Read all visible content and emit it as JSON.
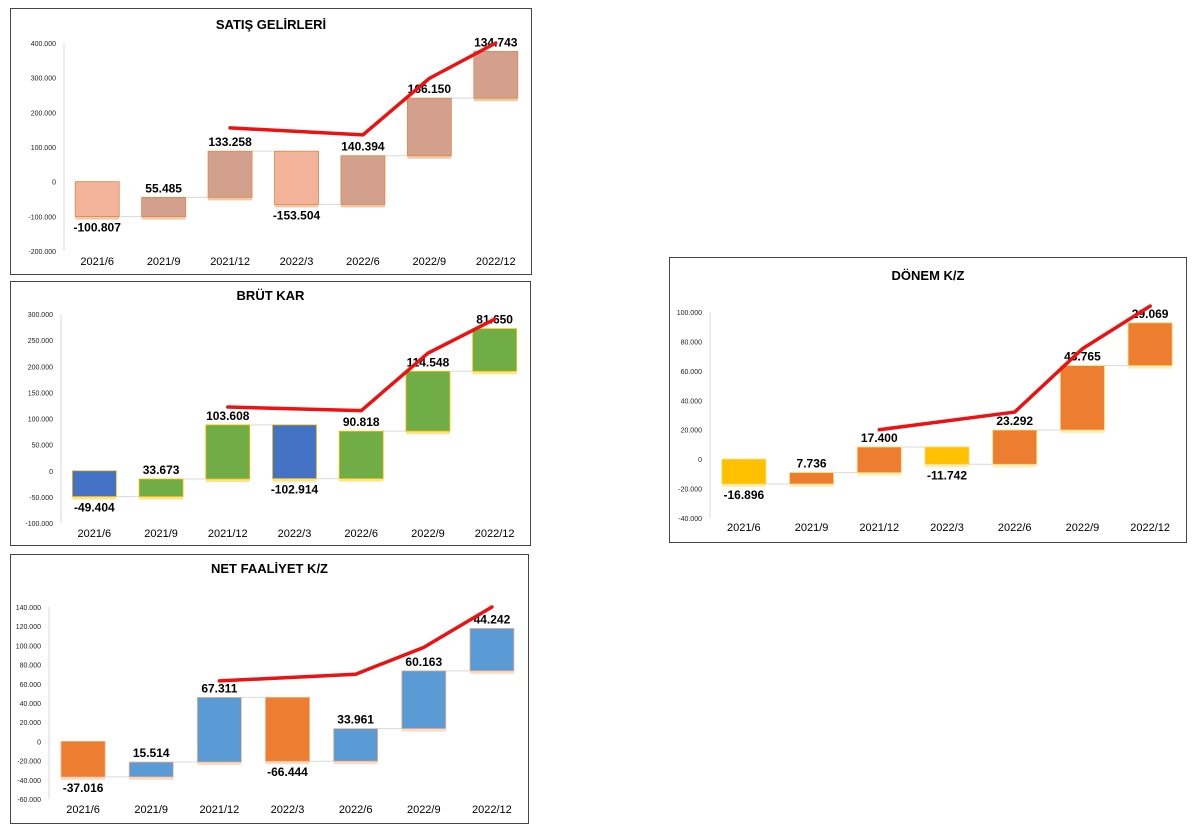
{
  "chart_data": [
    {
      "id": "satis",
      "type": "bar",
      "title": "SATIŞ GELİRLERİ",
      "categories": [
        "2021/6",
        "2021/9",
        "2021/12",
        "2022/3",
        "2022/6",
        "2022/9",
        "2022/12"
      ],
      "series": [
        {
          "values": [
            -100.807,
            55.485,
            133.258,
            -153.504,
            140.394,
            166.15,
            134.743
          ]
        }
      ],
      "value_labels": [
        "-100.807",
        "55.485",
        "133.258",
        "-153.504",
        "140.394",
        "166.150",
        "134.743"
      ],
      "y_ticks": [
        "400.000",
        "300.000",
        "200.000",
        "100.000",
        "0",
        "-100.000",
        "-200.000"
      ],
      "ylim": [
        -200000,
        400000
      ],
      "bars": [
        [
          0,
          -100807
        ],
        [
          -100807,
          -45322
        ],
        [
          -45322,
          87936
        ],
        [
          87936,
          -65568
        ],
        [
          -65568,
          74826
        ],
        [
          74826,
          240976
        ],
        [
          240976,
          375719
        ]
      ],
      "trend": [
        [
          2,
          155000
        ],
        [
          4,
          135000
        ],
        [
          5,
          298000
        ],
        [
          6,
          400000
        ]
      ],
      "colors": {
        "positive": "#d4a08e",
        "negative": "#f2b39a",
        "edge": "#e08840",
        "trend": "#ee1111"
      },
      "bar_colors": [
        "negative",
        "positive",
        "positive",
        "negative",
        "positive",
        "positive",
        "positive"
      ]
    },
    {
      "id": "brut",
      "type": "bar",
      "title": "BRÜT KAR",
      "categories": [
        "2021/6",
        "2021/9",
        "2021/12",
        "2022/3",
        "2022/6",
        "2022/9",
        "2022/12"
      ],
      "series": [
        {
          "values": [
            -49.404,
            33.673,
            103.608,
            -102.914,
            90.818,
            114.548,
            81.65
          ]
        }
      ],
      "value_labels": [
        "-49.404",
        "33.673",
        "103.608",
        "-102.914",
        "90.818",
        "114.548",
        "81.650"
      ],
      "y_ticks": [
        "300.000",
        "250.000",
        "200.000",
        "150.000",
        "100.000",
        "50.000",
        "0",
        "-50.000",
        "-100.000"
      ],
      "ylim": [
        -100000,
        300000
      ],
      "bars": [
        [
          0,
          -49404
        ],
        [
          -49404,
          -15731
        ],
        [
          -15731,
          87877
        ],
        [
          87877,
          -15037
        ],
        [
          -15037,
          75781
        ],
        [
          75781,
          190329
        ],
        [
          190329,
          271979
        ]
      ],
      "trend": [
        [
          2,
          122000
        ],
        [
          4,
          115000
        ],
        [
          5,
          225000
        ],
        [
          6,
          290000
        ]
      ],
      "colors": {
        "positive": "#70ad47",
        "negative": "#4472c4",
        "edge": "#ffc000",
        "trend": "#ee1111"
      },
      "bar_colors": [
        "negative",
        "positive",
        "positive",
        "negative",
        "positive",
        "positive",
        "positive"
      ]
    },
    {
      "id": "net",
      "type": "bar",
      "title": "NET FAALİYET K/Z",
      "categories": [
        "2021/6",
        "2021/9",
        "2021/12",
        "2022/3",
        "2022/6",
        "2022/9",
        "2022/12"
      ],
      "series": [
        {
          "values": [
            -37.016,
            15.514,
            67.311,
            -66.444,
            33.961,
            60.163,
            44.242
          ]
        }
      ],
      "value_labels": [
        "-37.016",
        "15.514",
        "67.311",
        "-66.444",
        "33.961",
        "60.163",
        "44.242"
      ],
      "y_ticks": [
        "140.000",
        "120.000",
        "100.000",
        "80.000",
        "60.000",
        "40.000",
        "20.000",
        "0",
        "-20.000",
        "-40.000",
        "-60.000"
      ],
      "ylim": [
        -60000,
        140000
      ],
      "bars": [
        [
          0,
          -37016
        ],
        [
          -37016,
          -21502
        ],
        [
          -21502,
          45809
        ],
        [
          45809,
          -20635
        ],
        [
          -20635,
          13326
        ],
        [
          13326,
          73489
        ],
        [
          73489,
          117731
        ]
      ],
      "trend": [
        [
          2,
          63000
        ],
        [
          4,
          70000
        ],
        [
          5,
          98000
        ],
        [
          6,
          140000
        ]
      ],
      "colors": {
        "positive": "#5b9bd5",
        "negative": "#ed7d31",
        "edge": "#f4b183",
        "trend": "#ee1111"
      },
      "bar_colors": [
        "negative",
        "positive",
        "positive",
        "negative",
        "positive",
        "positive",
        "positive"
      ]
    },
    {
      "id": "donem",
      "type": "bar",
      "title": "DÖNEM K/Z",
      "categories": [
        "2021/6",
        "2021/9",
        "2021/12",
        "2022/3",
        "2022/6",
        "2022/9",
        "2022/12"
      ],
      "series": [
        {
          "values": [
            -16.896,
            7.736,
            17.4,
            -11.742,
            23.292,
            43.765,
            29.069
          ]
        }
      ],
      "value_labels": [
        "-16.896",
        "7.736",
        "17.400",
        "-11.742",
        "23.292",
        "43.765",
        "29.069"
      ],
      "y_ticks": [
        "100.000",
        "80.000",
        "60.000",
        "40.000",
        "20.000",
        "0",
        "-20.000",
        "-40.000"
      ],
      "ylim": [
        -40000,
        100000
      ],
      "bars": [
        [
          0,
          -16896
        ],
        [
          -16896,
          -9160
        ],
        [
          -9160,
          8240
        ],
        [
          8240,
          -3502
        ],
        [
          -3502,
          19790
        ],
        [
          19790,
          63555
        ],
        [
          63555,
          92624
        ]
      ],
      "trend": [
        [
          2,
          20000
        ],
        [
          4,
          32000
        ],
        [
          5,
          75000
        ],
        [
          6,
          104000
        ]
      ],
      "colors": {
        "positive": "#ed7d31",
        "negative": "#ffc000",
        "edge": "#ffd966",
        "trend": "#ee1111"
      },
      "bar_colors": [
        "negative",
        "positive",
        "positive",
        "negative",
        "positive",
        "positive",
        "positive"
      ]
    }
  ]
}
